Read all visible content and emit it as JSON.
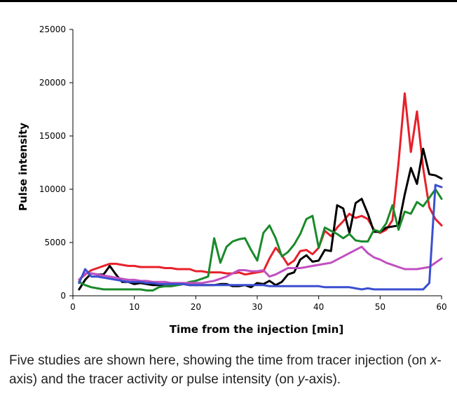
{
  "chart_data": {
    "type": "line",
    "xlabel": "Time from the injection [min]",
    "ylabel": "Pulse intensity",
    "xlim": [
      0,
      60
    ],
    "ylim": [
      0,
      25000
    ],
    "xticks": [
      0,
      10,
      20,
      30,
      40,
      50,
      60
    ],
    "yticks": [
      0,
      5000,
      10000,
      15000,
      20000,
      25000
    ],
    "grid": false,
    "legend": "none",
    "series": [
      {
        "color": "#e8202a",
        "x": [
          1,
          2,
          3,
          4,
          5,
          6,
          7,
          8,
          9,
          10,
          11,
          12,
          13,
          14,
          15,
          16,
          17,
          18,
          19,
          20,
          21,
          22,
          23,
          24,
          25,
          26,
          27,
          28,
          29,
          30,
          31,
          32,
          33,
          34,
          35,
          36,
          37,
          38,
          39,
          40,
          41,
          42,
          43,
          44,
          45,
          46,
          47,
          48,
          49,
          50,
          51,
          52,
          53,
          54,
          55,
          56,
          57,
          58,
          59,
          60
        ],
        "y": [
          1500,
          2000,
          2400,
          2600,
          2800,
          3000,
          3000,
          2900,
          2800,
          2800,
          2700,
          2700,
          2700,
          2700,
          2600,
          2600,
          2500,
          2500,
          2500,
          2300,
          2300,
          2200,
          2200,
          2200,
          2100,
          2100,
          2200,
          2000,
          2100,
          2200,
          2300,
          3500,
          4500,
          3800,
          2900,
          3300,
          4200,
          4300,
          3900,
          4500,
          6100,
          5600,
          6400,
          7000,
          7700,
          7300,
          7500,
          7200,
          6200,
          5900,
          6200,
          7100,
          12500,
          19000,
          13500,
          17300,
          12000,
          8300,
          7200,
          6600
        ]
      },
      {
        "color": "#000000",
        "x": [
          1,
          2,
          3,
          4,
          5,
          6,
          7,
          8,
          9,
          10,
          11,
          12,
          13,
          14,
          15,
          16,
          17,
          18,
          19,
          20,
          21,
          22,
          23,
          24,
          25,
          26,
          27,
          28,
          29,
          30,
          31,
          32,
          33,
          34,
          35,
          36,
          37,
          38,
          39,
          40,
          41,
          42,
          43,
          44,
          45,
          46,
          47,
          48,
          49,
          50,
          51,
          52,
          53,
          54,
          55,
          56,
          57,
          58,
          59,
          60
        ],
        "y": [
          600,
          1500,
          2100,
          2000,
          2000,
          2800,
          2000,
          1300,
          1300,
          1100,
          1200,
          1100,
          1000,
          1000,
          900,
          900,
          1000,
          1100,
          1000,
          1000,
          1000,
          1000,
          1000,
          1100,
          1100,
          900,
          900,
          1000,
          800,
          1200,
          1100,
          1400,
          1000,
          1300,
          2000,
          2200,
          3400,
          3800,
          3200,
          3300,
          4300,
          4200,
          8500,
          8200,
          5900,
          8700,
          9100,
          7700,
          6000,
          6000,
          6400,
          6500,
          6600,
          9500,
          12000,
          10500,
          13800,
          11400,
          11300,
          11000
        ]
      },
      {
        "color": "#1a8a2a",
        "x": [
          1,
          2,
          3,
          4,
          5,
          6,
          7,
          8,
          9,
          10,
          11,
          12,
          13,
          14,
          15,
          16,
          17,
          18,
          19,
          20,
          21,
          22,
          23,
          24,
          25,
          26,
          27,
          28,
          29,
          30,
          31,
          32,
          33,
          34,
          35,
          36,
          37,
          38,
          39,
          40,
          41,
          42,
          43,
          44,
          45,
          46,
          47,
          48,
          49,
          50,
          51,
          52,
          53,
          54,
          55,
          56,
          57,
          58,
          59,
          60
        ],
        "y": [
          1300,
          1000,
          800,
          700,
          600,
          600,
          600,
          600,
          600,
          600,
          600,
          500,
          500,
          800,
          900,
          900,
          1000,
          1100,
          1300,
          1400,
          1600,
          1800,
          5400,
          3100,
          4600,
          5100,
          5300,
          5400,
          4300,
          3300,
          5900,
          6600,
          5400,
          3700,
          4100,
          4800,
          5800,
          7200,
          7500,
          4500,
          6400,
          6100,
          5800,
          5400,
          5800,
          5200,
          5100,
          5100,
          6200,
          6000,
          6800,
          8500,
          6200,
          7900,
          7700,
          8800,
          8400,
          9200,
          10000,
          9100
        ]
      },
      {
        "color": "#c050c0",
        "x": [
          1,
          2,
          3,
          4,
          5,
          6,
          7,
          8,
          9,
          10,
          11,
          12,
          13,
          14,
          15,
          16,
          17,
          18,
          19,
          20,
          21,
          22,
          23,
          24,
          25,
          26,
          27,
          28,
          29,
          30,
          31,
          32,
          33,
          34,
          35,
          36,
          37,
          38,
          39,
          40,
          41,
          42,
          43,
          44,
          45,
          46,
          47,
          48,
          49,
          50,
          51,
          52,
          53,
          54,
          55,
          56,
          57,
          58,
          59,
          60
        ],
        "y": [
          1500,
          2100,
          2100,
          2000,
          1900,
          1800,
          1700,
          1600,
          1500,
          1500,
          1400,
          1400,
          1300,
          1300,
          1300,
          1200,
          1200,
          1200,
          1200,
          1200,
          1200,
          1300,
          1400,
          1600,
          1800,
          2100,
          2400,
          2400,
          2300,
          2300,
          2400,
          1800,
          2000,
          2300,
          2600,
          2600,
          2600,
          2700,
          2800,
          2900,
          3000,
          3100,
          3400,
          3700,
          4000,
          4300,
          4600,
          4000,
          3600,
          3400,
          3100,
          2900,
          2700,
          2500,
          2500,
          2500,
          2600,
          2700,
          3100,
          3500
        ]
      },
      {
        "color": "#3a4fd0",
        "x": [
          1,
          2,
          3,
          4,
          5,
          6,
          7,
          8,
          9,
          10,
          11,
          12,
          13,
          14,
          15,
          16,
          17,
          18,
          19,
          20,
          21,
          22,
          23,
          24,
          25,
          26,
          27,
          28,
          29,
          30,
          31,
          32,
          33,
          34,
          35,
          36,
          37,
          38,
          39,
          40,
          41,
          42,
          43,
          44,
          45,
          46,
          47,
          48,
          49,
          50,
          51,
          52,
          53,
          54,
          55,
          56,
          57,
          58,
          59,
          60
        ],
        "y": [
          1200,
          2500,
          1800,
          1800,
          1700,
          1600,
          1500,
          1400,
          1300,
          1300,
          1300,
          1200,
          1200,
          1100,
          1100,
          1100,
          1100,
          1100,
          1000,
          1000,
          1000,
          1000,
          1000,
          1000,
          1000,
          1000,
          1000,
          1000,
          1000,
          1000,
          1000,
          900,
          900,
          900,
          900,
          900,
          900,
          900,
          900,
          900,
          800,
          800,
          800,
          800,
          800,
          700,
          600,
          700,
          600,
          600,
          600,
          600,
          600,
          600,
          600,
          600,
          600,
          1200,
          10400,
          10200
        ]
      }
    ]
  },
  "caption": {
    "part1": "Five studies are shown here, showing the time from tracer injection (on ",
    "axis_x": "x",
    "part2": "-axis) and the tracer activity or pulse intensity (on ",
    "axis_y": "y",
    "part3": "-axis)."
  }
}
